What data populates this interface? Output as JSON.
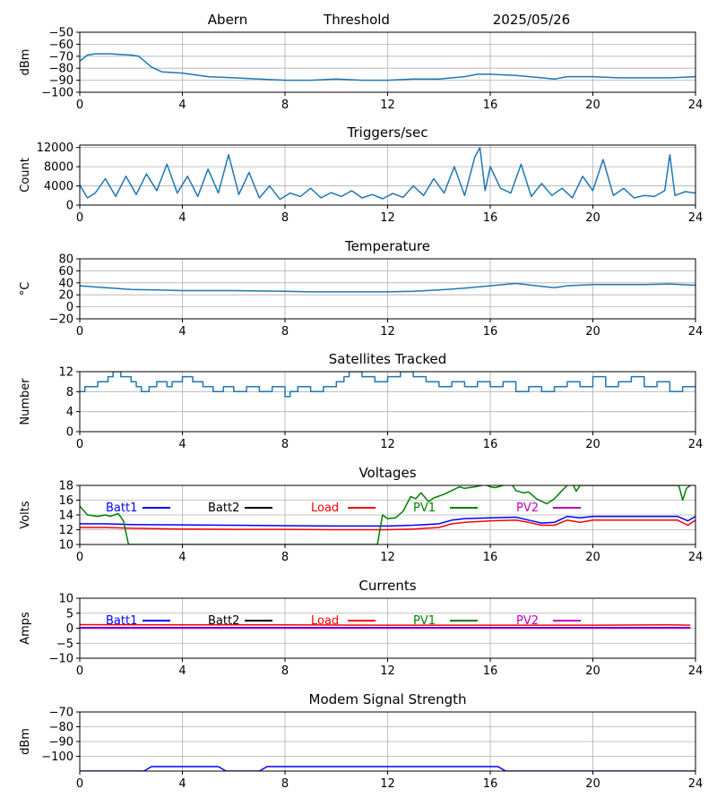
{
  "header": {
    "station": "Abern",
    "mode": "Threshold",
    "date": "2025/05/26"
  },
  "colors": {
    "grid": "#b0b0b0",
    "series": "#1f77b4",
    "batt1": "#0000ff",
    "batt2": "#000000",
    "load": "#ff0000",
    "pv1": "#008000",
    "pv2": "#bf00bf"
  },
  "chart_data": [
    {
      "type": "line",
      "title": "",
      "xlabel": "",
      "ylabel": "dBm",
      "xlim": [
        0,
        24
      ],
      "ylim": [
        -100,
        -50
      ],
      "grid": true,
      "x_ticks": [
        "0",
        "4",
        "8",
        "12",
        "16",
        "20",
        "24"
      ],
      "y_ticks": [
        -100,
        -90,
        -80,
        -70,
        -60,
        -50
      ],
      "y_tick_labels": [
        "−100",
        "−90",
        "−80",
        "−70",
        "−60",
        "−50"
      ],
      "series": [
        {
          "color": "#1f77b4",
          "x": [
            0,
            0.3,
            0.6,
            1.2,
            2,
            2.3,
            2.8,
            3.2,
            4,
            5,
            6,
            7,
            8,
            9,
            10,
            11,
            12,
            13,
            14,
            15,
            15.5,
            16,
            17,
            18,
            18.5,
            19,
            20,
            21,
            22,
            23,
            24
          ],
          "y": [
            -74,
            -69,
            -68,
            -68,
            -69,
            -70,
            -79,
            -83,
            -84,
            -87,
            -88,
            -89,
            -90,
            -90,
            -89,
            -90,
            -90,
            -89,
            -89,
            -87,
            -85,
            -85,
            -86,
            -88,
            -89,
            -87,
            -87,
            -88,
            -88,
            -88,
            -87
          ]
        }
      ]
    },
    {
      "type": "line",
      "title": "Triggers/sec",
      "xlabel": "",
      "ylabel": "Count",
      "xlim": [
        0,
        24
      ],
      "ylim": [
        0,
        12500
      ],
      "grid": true,
      "x_ticks": [
        "0",
        "4",
        "8",
        "12",
        "16",
        "20",
        "24"
      ],
      "y_ticks": [
        0,
        4000,
        8000,
        12000
      ],
      "y_tick_labels": [
        "0",
        "4000",
        "8000",
        "12000"
      ],
      "series": [
        {
          "color": "#1f77b4",
          "x": [
            0,
            0.3,
            0.6,
            1,
            1.4,
            1.8,
            2.2,
            2.6,
            3,
            3.4,
            3.8,
            4.2,
            4.6,
            5,
            5.4,
            5.8,
            6.2,
            6.6,
            7,
            7.4,
            7.8,
            8.2,
            8.6,
            9,
            9.4,
            9.8,
            10.2,
            10.6,
            11,
            11.4,
            11.8,
            12.2,
            12.6,
            13,
            13.4,
            13.8,
            14.2,
            14.6,
            15,
            15.4,
            15.6,
            15.8,
            16,
            16.4,
            16.8,
            17.2,
            17.6,
            18,
            18.4,
            18.8,
            19.2,
            19.6,
            20,
            20.4,
            20.8,
            21.2,
            21.6,
            22,
            22.4,
            22.8,
            23,
            23.2,
            23.6,
            24
          ],
          "y": [
            4200,
            1500,
            2500,
            5500,
            1800,
            6000,
            2200,
            6500,
            3000,
            8500,
            2500,
            6000,
            1800,
            7500,
            2500,
            10500,
            2200,
            6800,
            1500,
            4000,
            1200,
            2500,
            1800,
            3500,
            1500,
            2600,
            1800,
            3000,
            1500,
            2200,
            1300,
            2400,
            1600,
            4000,
            2000,
            5500,
            2500,
            8000,
            2000,
            10000,
            12000,
            3000,
            8000,
            3500,
            2500,
            8500,
            1800,
            4500,
            2000,
            3500,
            1500,
            6000,
            3000,
            9500,
            2000,
            3500,
            1500,
            2000,
            1800,
            3000,
            10500,
            2000,
            2800,
            2500
          ]
        }
      ]
    },
    {
      "type": "line",
      "title": "Temperature",
      "xlabel": "",
      "ylabel": "°C",
      "xlim": [
        0,
        24
      ],
      "ylim": [
        -20,
        80
      ],
      "grid": true,
      "x_ticks": [
        "0",
        "4",
        "8",
        "12",
        "16",
        "20",
        "24"
      ],
      "y_ticks": [
        -20,
        0,
        20,
        40,
        60,
        80
      ],
      "y_tick_labels": [
        "−20",
        "0",
        "20",
        "40",
        "60",
        "80"
      ],
      "series": [
        {
          "color": "#1f77b4",
          "x": [
            0,
            1,
            2,
            3,
            4,
            6,
            8,
            9,
            10,
            12,
            13,
            14,
            15,
            16,
            17,
            18,
            18.5,
            19,
            20,
            22,
            23,
            24
          ],
          "y": [
            35,
            32,
            29,
            28,
            27,
            27,
            26,
            25,
            25,
            25,
            26,
            28,
            31,
            35,
            39,
            34,
            32,
            35,
            37,
            37,
            38,
            36
          ]
        }
      ]
    },
    {
      "type": "line",
      "title": "Satellites Tracked",
      "xlabel": "",
      "ylabel": "Number",
      "xlim": [
        0,
        24
      ],
      "ylim": [
        0,
        12
      ],
      "grid": true,
      "x_ticks": [
        "0",
        "4",
        "8",
        "12",
        "16",
        "20",
        "24"
      ],
      "y_ticks": [
        0,
        4,
        8,
        12
      ],
      "y_tick_labels": [
        "0",
        "4",
        "8",
        "12"
      ],
      "series": [
        {
          "color": "#1f77b4",
          "step": true,
          "x": [
            0,
            0.2,
            0.7,
            1.1,
            1.3,
            1.6,
            2,
            2.2,
            2.4,
            2.7,
            3,
            3.4,
            3.6,
            4,
            4.4,
            4.8,
            5.2,
            5.6,
            6,
            6.5,
            7,
            7.5,
            8,
            8.2,
            8.5,
            9,
            9.5,
            10,
            10.3,
            10.5,
            11,
            11.5,
            12,
            12.5,
            13,
            13.5,
            14,
            14.5,
            15,
            15.5,
            16,
            16.5,
            17,
            17.5,
            18,
            18.5,
            19,
            19.5,
            20,
            20.5,
            21,
            21.5,
            22,
            22.5,
            23,
            23.5,
            24
          ],
          "y": [
            8,
            9,
            10,
            11,
            12,
            11,
            10,
            9,
            8,
            9,
            10,
            9,
            10,
            11,
            10,
            9,
            8,
            9,
            8,
            9,
            8,
            9,
            7,
            8,
            9,
            8,
            9,
            10,
            11,
            12,
            11,
            10,
            11,
            12,
            11,
            10,
            9,
            10,
            9,
            10,
            9,
            10,
            8,
            9,
            8,
            9,
            10,
            9,
            11,
            9,
            10,
            11,
            9,
            10,
            8,
            9,
            9
          ]
        }
      ]
    },
    {
      "type": "line",
      "title": "Voltages",
      "xlabel": "",
      "ylabel": "Volts",
      "xlim": [
        0,
        24
      ],
      "ylim": [
        10,
        18
      ],
      "grid": true,
      "x_ticks": [
        "0",
        "4",
        "8",
        "12",
        "16",
        "20",
        "24"
      ],
      "y_ticks": [
        10,
        12,
        14,
        16,
        18
      ],
      "y_tick_labels": [
        "10",
        "12",
        "14",
        "16",
        "18"
      ],
      "legend": [
        "Batt1",
        "Batt2",
        "Load",
        "PV1",
        "PV2"
      ],
      "series": [
        {
          "name": "Batt1",
          "color": "#0000ff",
          "x": [
            0,
            1,
            2,
            4,
            6,
            8,
            10,
            12,
            13,
            13.5,
            14,
            14.5,
            15,
            16,
            17,
            17.5,
            18,
            18.5,
            19,
            19.5,
            20,
            21,
            22,
            23,
            23.3,
            23.7,
            24
          ],
          "y": [
            12.8,
            12.8,
            12.7,
            12.65,
            12.6,
            12.55,
            12.5,
            12.5,
            12.6,
            12.7,
            12.8,
            13.3,
            13.5,
            13.6,
            13.7,
            13.3,
            12.9,
            13.0,
            13.8,
            13.6,
            13.8,
            13.8,
            13.8,
            13.8,
            13.8,
            13.2,
            13.8
          ]
        },
        {
          "name": "Load",
          "color": "#ff0000",
          "x": [
            0,
            1,
            2,
            4,
            6,
            8,
            10,
            12,
            13,
            13.5,
            14,
            14.5,
            15,
            16,
            17,
            17.5,
            18,
            18.5,
            19,
            19.5,
            20,
            21,
            22,
            23,
            23.3,
            23.7,
            24
          ],
          "y": [
            12.3,
            12.3,
            12.2,
            12.1,
            12.05,
            12.05,
            12.0,
            12.0,
            12.1,
            12.2,
            12.3,
            12.8,
            13.0,
            13.2,
            13.3,
            13.0,
            12.6,
            12.6,
            13.3,
            13.0,
            13.3,
            13.3,
            13.3,
            13.3,
            13.3,
            12.6,
            13.3
          ]
        },
        {
          "name": "PV1",
          "color": "#008000",
          "x": [
            0,
            0.3,
            0.7,
            1,
            1.2,
            1.5,
            1.7,
            1.9,
            11.6,
            11.8,
            12,
            12.3,
            12.6,
            12.9,
            13.1,
            13.3,
            13.6,
            13.8,
            14.2,
            14.5,
            14.8,
            15,
            15.4,
            15.8,
            16,
            16.2,
            16.5,
            16.8,
            17,
            17.3,
            17.5,
            17.8,
            18.2,
            18.5,
            18.8,
            19,
            19.2,
            19.35,
            19.5,
            23.35,
            23.5,
            23.65,
            23.8
          ],
          "y": [
            15.2,
            14.0,
            13.8,
            14.0,
            13.8,
            14.2,
            13.2,
            10.0,
            10.0,
            14.0,
            13.5,
            13.6,
            14.5,
            16.5,
            16.2,
            17.0,
            15.8,
            16.3,
            16.8,
            17.3,
            17.8,
            17.6,
            17.8,
            18.1,
            17.8,
            17.7,
            18.0,
            18.4,
            17.3,
            17.0,
            17.1,
            16.2,
            15.5,
            16.2,
            17.3,
            18.0,
            18.3,
            17.2,
            18.0,
            18.0,
            16.0,
            17.6,
            18.0
          ]
        }
      ]
    },
    {
      "type": "line",
      "title": "Currents",
      "xlabel": "",
      "ylabel": "Amps",
      "xlim": [
        0,
        24
      ],
      "ylim": [
        -10,
        10
      ],
      "grid": true,
      "x_ticks": [
        "0",
        "4",
        "8",
        "12",
        "16",
        "20",
        "24"
      ],
      "y_ticks": [
        -10,
        -5,
        0,
        5,
        10
      ],
      "y_tick_labels": [
        "−10",
        "−5",
        "0",
        "5",
        "10"
      ],
      "legend": [
        "Batt1",
        "Batt2",
        "Load",
        "PV1",
        "PV2"
      ],
      "series": [
        {
          "name": "Load",
          "color": "#ff0000",
          "x": [
            0,
            4,
            8,
            12,
            16,
            20,
            23,
            23.8
          ],
          "y": [
            1.2,
            1.1,
            1.1,
            1.0,
            1.0,
            1.0,
            1.1,
            1.0
          ]
        },
        {
          "name": "Batt1",
          "color": "#0000ff",
          "x": [
            0,
            12,
            23.8
          ],
          "y": [
            0.2,
            0.2,
            0.2
          ]
        },
        {
          "name": "PV2",
          "color": "#bf00bf",
          "x": [
            0,
            12,
            23.8
          ],
          "y": [
            0.0,
            0.0,
            0.0
          ]
        }
      ]
    },
    {
      "type": "line",
      "title": "Modem Signal Strength",
      "xlabel": "",
      "ylabel": "dBm",
      "xlim": [
        0,
        24
      ],
      "ylim": [
        -110,
        -70
      ],
      "grid": true,
      "x_ticks": [
        "0",
        "4",
        "8",
        "12",
        "16",
        "20",
        "24"
      ],
      "y_ticks": [
        -100,
        -90,
        -80,
        -70
      ],
      "y_tick_labels": [
        "−100",
        "−90",
        "−80",
        "−70"
      ],
      "series": [
        {
          "color": "#0000ff",
          "x": [
            0,
            2.5,
            2.8,
            5.4,
            5.7,
            7.0,
            7.3,
            16.3,
            16.6,
            17.3,
            17.4,
            24
          ],
          "y": [
            -110,
            -110,
            -107,
            -107,
            -110,
            -110,
            -107,
            -107,
            -110,
            -110,
            -110,
            -110
          ]
        }
      ]
    }
  ]
}
